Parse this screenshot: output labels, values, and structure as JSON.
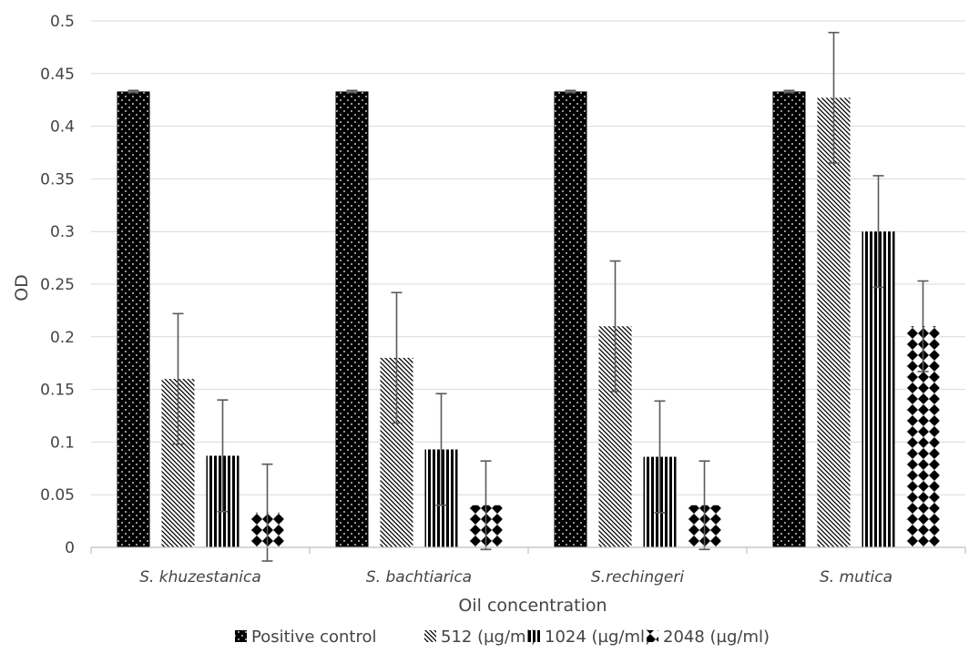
{
  "chart_data": {
    "type": "bar",
    "title": "",
    "xlabel": "Oil concentration",
    "ylabel": "OD",
    "ylim": [
      0,
      0.5
    ],
    "yticks": [
      "0",
      "0.05",
      "0.1",
      "0.15",
      "0.2",
      "0.25",
      "0.3",
      "0.35",
      "0.4",
      "0.45",
      "0.5"
    ],
    "grid": true,
    "legend_position": "bottom",
    "categories": [
      "S. khuzestanica",
      "S. bachtiarica",
      "S.rechingeri",
      "S. mutica"
    ],
    "series": [
      {
        "name": "Positive control",
        "pattern": "dots-dark",
        "values": [
          0.433,
          0.433,
          0.433,
          0.433
        ],
        "errors": [
          0.001,
          0.001,
          0.001,
          0.001
        ]
      },
      {
        "name": "512 (µg/ml)",
        "pattern": "diagonal",
        "values": [
          0.16,
          0.18,
          0.21,
          0.427
        ],
        "errors": [
          0.062,
          0.062,
          0.062,
          0.062
        ]
      },
      {
        "name": "1024 (µg/ml)",
        "pattern": "vertical",
        "values": [
          0.087,
          0.093,
          0.086,
          0.3
        ],
        "errors": [
          0.053,
          0.053,
          0.053,
          0.053
        ]
      },
      {
        "name": "2048 (µg/ml)",
        "pattern": "diamond",
        "values": [
          0.033,
          0.04,
          0.04,
          0.21
        ],
        "errors": [
          0.046,
          0.042,
          0.042,
          0.043
        ]
      }
    ],
    "colors": {
      "grid": "#d9d9d9",
      "axis": "#bfbfbf",
      "text": "#444444",
      "error_bar": "#595959",
      "bar": "#000000"
    }
  }
}
